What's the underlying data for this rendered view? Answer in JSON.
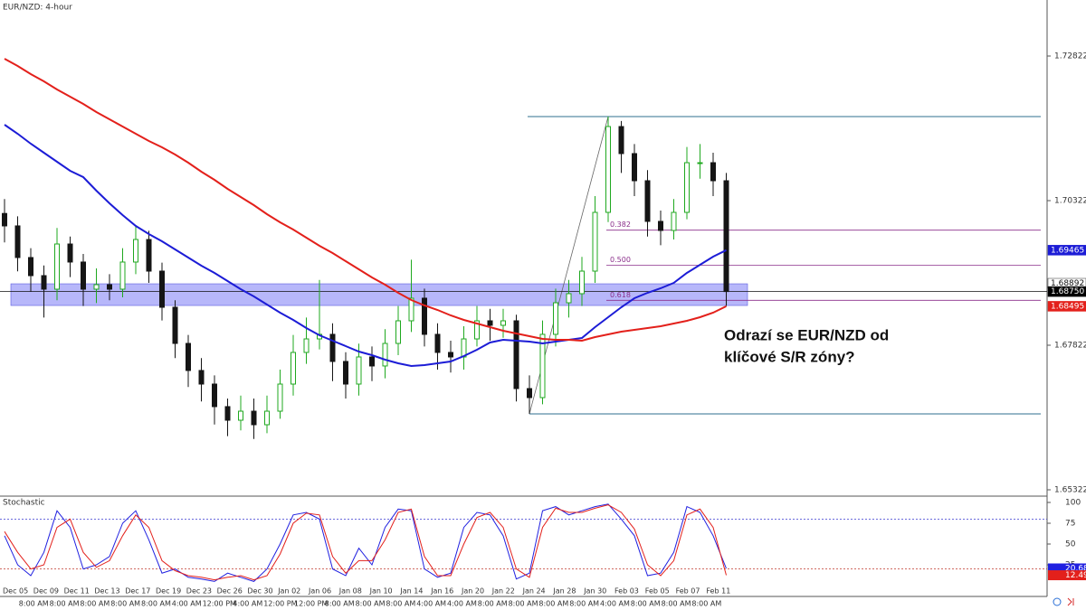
{
  "title": "EUR/NZD: 4-hour",
  "annotation": [
    "Odrazí se EUR/NZD od",
    "klíčové S/R zóny?"
  ],
  "chart_data": [
    {
      "type": "candlestick",
      "up_color": "#1fa81f",
      "down_color": "#151515",
      "open": [
        1.701,
        1.69885,
        1.69338,
        1.69025,
        1.68791,
        1.69572,
        1.6926,
        1.68791,
        1.68869,
        1.68791,
        1.6926,
        1.6965,
        1.69103,
        1.68478,
        1.67853,
        1.67385,
        1.6715,
        1.6676,
        1.66525,
        1.66681,
        1.66447,
        1.66681,
        1.6715,
        1.67697,
        1.67931,
        1.6801,
        1.67541,
        1.6715,
        1.67619,
        1.67463,
        1.67853,
        1.68244,
        1.68635,
        1.6801,
        1.67697,
        1.67619,
        1.67931,
        1.68244,
        1.68166,
        1.68244,
        1.67072,
        1.66916,
        1.6801,
        1.68556,
        1.68713,
        1.69103,
        1.70119,
        1.71603,
        1.71135,
        1.70666,
        1.69963,
        1.69806,
        1.70119,
        1.70978,
        1.70978,
        1.70666
      ],
      "high": [
        1.7035,
        1.7005,
        1.695,
        1.692,
        1.6985,
        1.697,
        1.694,
        1.6915,
        1.6905,
        1.695,
        1.699,
        1.698,
        1.6925,
        1.686,
        1.68,
        1.676,
        1.673,
        1.669,
        1.6695,
        1.669,
        1.6695,
        1.674,
        1.68,
        1.683,
        1.6895,
        1.682,
        1.677,
        1.6785,
        1.678,
        1.681,
        1.685,
        1.693,
        1.688,
        1.682,
        1.679,
        1.6815,
        1.685,
        1.6845,
        1.6845,
        1.6835,
        1.673,
        1.6825,
        1.688,
        1.6895,
        1.6935,
        1.704,
        1.71775,
        1.717,
        1.713,
        1.7085,
        1.7015,
        1.7035,
        1.7125,
        1.713,
        1.7115,
        1.708
      ],
      "low": [
        1.696,
        1.691,
        1.6875,
        1.683,
        1.686,
        1.69,
        1.685,
        1.6855,
        1.686,
        1.6865,
        1.6905,
        1.689,
        1.6825,
        1.676,
        1.671,
        1.6685,
        1.6645,
        1.6625,
        1.6635,
        1.662,
        1.663,
        1.6655,
        1.6695,
        1.675,
        1.6775,
        1.672,
        1.669,
        1.6695,
        1.672,
        1.6725,
        1.6765,
        1.6805,
        1.678,
        1.674,
        1.6735,
        1.674,
        1.678,
        1.679,
        1.6795,
        1.6685,
        1.66635,
        1.668,
        1.678,
        1.683,
        1.685,
        1.689,
        1.6995,
        1.708,
        1.704,
        1.697,
        1.6955,
        1.6965,
        1.7,
        1.707,
        1.704,
        1.685
      ],
      "close": [
        1.69885,
        1.69338,
        1.69025,
        1.68791,
        1.69572,
        1.6926,
        1.68791,
        1.68869,
        1.68791,
        1.6926,
        1.6965,
        1.69103,
        1.68478,
        1.67853,
        1.67385,
        1.6715,
        1.6676,
        1.66525,
        1.66681,
        1.66447,
        1.66681,
        1.6715,
        1.67697,
        1.67931,
        1.6801,
        1.67541,
        1.6715,
        1.67619,
        1.67463,
        1.67853,
        1.68244,
        1.68635,
        1.6801,
        1.67697,
        1.67619,
        1.67931,
        1.68244,
        1.68166,
        1.68244,
        1.67072,
        1.66916,
        1.6801,
        1.68556,
        1.68713,
        1.69103,
        1.70119,
        1.71603,
        1.71135,
        1.70666,
        1.69963,
        1.69806,
        1.70119,
        1.70978,
        1.70978,
        1.70666,
        1.6875
      ],
      "lines": [
        {
          "color": "#1c1cd6",
          "values": [
            1.71635,
            1.71478,
            1.71306,
            1.7115,
            1.70994,
            1.70838,
            1.70728,
            1.70494,
            1.70275,
            1.70072,
            1.69885,
            1.69744,
            1.69619,
            1.69478,
            1.69338,
            1.69197,
            1.69072,
            1.68931,
            1.68791,
            1.68666,
            1.68525,
            1.68385,
            1.6826,
            1.68119,
            1.67994,
            1.679,
            1.67806,
            1.67713,
            1.6765,
            1.67572,
            1.6751,
            1.67463,
            1.67478,
            1.6751,
            1.67541,
            1.67635,
            1.67744,
            1.67869,
            1.67916,
            1.679,
            1.67885,
            1.67853,
            1.67885,
            1.67916,
            1.67947,
            1.68135,
            1.68306,
            1.68478,
            1.68635,
            1.68728,
            1.68806,
            1.689,
            1.69072,
            1.69213,
            1.69353,
            1.69465
          ]
        },
        {
          "color": "#e3201b",
          "values": [
            1.72775,
            1.7265,
            1.7251,
            1.72385,
            1.72244,
            1.72119,
            1.71994,
            1.71853,
            1.71728,
            1.71603,
            1.71478,
            1.71353,
            1.71244,
            1.71119,
            1.70978,
            1.70822,
            1.70681,
            1.70525,
            1.70385,
            1.70244,
            1.70088,
            1.69947,
            1.69822,
            1.69681,
            1.69541,
            1.69416,
            1.69275,
            1.69135,
            1.68994,
            1.68869,
            1.68728,
            1.68603,
            1.6851,
            1.68431,
            1.68338,
            1.6826,
            1.68197,
            1.68135,
            1.68072,
            1.68025,
            1.67978,
            1.67931,
            1.67916,
            1.67916,
            1.679,
            1.67963,
            1.6801,
            1.68056,
            1.68088,
            1.68119,
            1.6815,
            1.68197,
            1.68244,
            1.68306,
            1.68385,
            1.68495
          ]
        }
      ],
      "ylim": [
        1.65228,
        1.73791
      ],
      "yticks": [
        1.72822,
        1.70322,
        1.67822,
        1.65322
      ],
      "price_labels": [
        {
          "value": 1.69465,
          "color": "#1c1cd6"
        },
        {
          "value": 1.68892,
          "color": "#ffffff"
        },
        {
          "value": {
            "value": 1.6875,
            "label": "1.68750"
          },
          "color": "#000000"
        },
        {
          "value": 1.68495,
          "color": "#e3201b"
        }
      ],
      "zone": {
        "top": 1.68884,
        "bottom": 1.68509,
        "color": "#7b7bf5"
      },
      "fib": {
        "swing_high": 1.71775,
        "swing_low": 1.66635,
        "color": "#8b2f8b",
        "levels": [
          0.382,
          {
            "value": 0.5,
            "label": "0.500"
          },
          0.618
        ]
      },
      "dates": [
        "Dec 05",
        "Dec 09",
        "Dec 11",
        "Dec 13",
        "Dec 17",
        "Dec 19",
        "Dec 23",
        "Dec 26",
        "Dec 30",
        "Jan 02",
        "Jan 06",
        "Jan 08",
        "Jan 10",
        "Jan 14",
        "Jan 16",
        "Jan 20",
        "Jan 22",
        "Jan 24",
        "Jan 28",
        "Jan 30",
        "Feb 03",
        "Feb 05",
        "Feb 07",
        "Feb 11"
      ],
      "times": [
        "8:00 AM",
        "8:00 AM",
        "8:00 AM",
        "8:00 AM",
        "8:00 AM",
        "4:00 AM",
        "12:00 PM",
        "4:00 AM",
        "12:00 PM",
        "12:00 PM",
        "8:00 AM",
        "8:00 AM",
        "8:00 AM",
        "4:00 AM",
        "4:00 AM",
        "8:00 AM",
        "8:00 AM",
        "8:00 AM",
        "8:00 AM",
        "4:00 AM",
        "8:00 AM",
        "8:00 AM",
        "8:00 AM"
      ]
    },
    {
      "type": "line",
      "title": "Stochastic",
      "lines": [
        {
          "color": "#2020e0",
          "values": [
            60,
            25,
            12,
            40,
            90,
            70,
            20,
            25,
            35,
            75,
            90,
            55,
            15,
            20,
            10,
            8,
            5,
            15,
            10,
            5,
            20,
            50,
            85,
            88,
            80,
            20,
            12,
            45,
            25,
            70,
            92,
            90,
            20,
            10,
            15,
            70,
            88,
            85,
            60,
            8,
            15,
            90,
            95,
            85,
            90,
            95,
            98,
            80,
            60,
            12,
            15,
            40,
            95,
            88,
            60,
            20.68
          ]
        },
        {
          "color": "#e3201b",
          "values": [
            65,
            40,
            20,
            25,
            70,
            80,
            40,
            22,
            30,
            60,
            85,
            70,
            30,
            18,
            12,
            10,
            7,
            10,
            12,
            7,
            12,
            38,
            75,
            87,
            85,
            35,
            15,
            30,
            30,
            55,
            88,
            92,
            35,
            12,
            12,
            50,
            82,
            88,
            70,
            20,
            10,
            70,
            93,
            88,
            88,
            93,
            97,
            88,
            68,
            25,
            12,
            30,
            85,
            92,
            70,
            12.49
          ]
        }
      ],
      "ylim": [
        -13,
        106.5
      ],
      "yticks": [
        100,
        75,
        50,
        25
      ],
      "levels": [
        {
          "value": 80,
          "color": "#3a3ad0"
        },
        {
          "value": 20,
          "color": "#c0392b"
        }
      ]
    }
  ]
}
